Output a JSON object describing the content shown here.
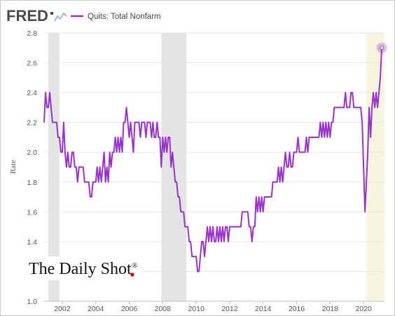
{
  "header": {
    "logo_text": "FRED",
    "series_title": "Quits: Total Nonfarm"
  },
  "watermark": {
    "text": "The Daily Shot",
    "registered_mark": "®",
    "dot_color": "#cc0000"
  },
  "colors": {
    "line": "#9932cc",
    "recession_shade": "#e4e4e4",
    "forecast_shade": "#f7f5dd",
    "grid": "#e6e6e6"
  },
  "chart_data": {
    "type": "line",
    "title": "Quits: Total Nonfarm",
    "ylabel": "Rate",
    "xlabel": "",
    "ylim": [
      1.0,
      2.8
    ],
    "xlim": [
      2000.917,
      2021.25
    ],
    "y_ticks": [
      "1.0",
      "1.2",
      "1.4",
      "1.6",
      "1.8",
      "2.0",
      "2.2",
      "2.4",
      "2.6",
      "2.8"
    ],
    "x_ticks": [
      "2002",
      "2004",
      "2006",
      "2008",
      "2010",
      "2012",
      "2014",
      "2016",
      "2018",
      "2020"
    ],
    "recessions": [
      [
        2001.17,
        2001.83
      ],
      [
        2007.92,
        2009.42
      ]
    ],
    "highlight_period": [
      2020.17,
      2021.25
    ],
    "grid": true,
    "last_point_marker": true,
    "series": [
      {
        "name": "Quits: Total Nonfarm",
        "x_start": 2000.917,
        "step_months": 1,
        "values": [
          2.2,
          2.4,
          2.3,
          2.3,
          2.4,
          2.3,
          2.2,
          2.2,
          2.2,
          2.2,
          2.1,
          2.1,
          2.0,
          2.0,
          2.2,
          2.0,
          1.9,
          2.0,
          1.9,
          1.9,
          2.0,
          2.0,
          1.9,
          1.9,
          1.8,
          1.9,
          1.9,
          1.9,
          1.9,
          1.8,
          1.8,
          1.8,
          1.8,
          1.7,
          1.7,
          1.8,
          1.8,
          1.8,
          1.9,
          1.8,
          1.9,
          1.8,
          1.9,
          2.0,
          1.8,
          1.9,
          1.8,
          2.0,
          1.9,
          2.0,
          2.0,
          2.1,
          2.0,
          2.1,
          2.0,
          2.1,
          2.0,
          2.2,
          2.2,
          2.3,
          2.2,
          2.1,
          2.2,
          2.1,
          2.0,
          2.2,
          2.2,
          2.2,
          2.2,
          2.1,
          2.2,
          2.2,
          2.2,
          2.1,
          2.2,
          2.2,
          2.2,
          2.1,
          2.2,
          2.1,
          2.1,
          2.2,
          2.1,
          2.1,
          1.9,
          2.1,
          2.0,
          2.1,
          2.0,
          2.1,
          2.1,
          1.9,
          2.0,
          1.9,
          1.8,
          1.8,
          1.7,
          1.7,
          1.6,
          1.6,
          1.6,
          1.5,
          1.5,
          1.5,
          1.4,
          1.4,
          1.3,
          1.3,
          1.3,
          1.3,
          1.2,
          1.2,
          1.3,
          1.4,
          1.4,
          1.3,
          1.4,
          1.5,
          1.4,
          1.5,
          1.4,
          1.5,
          1.4,
          1.4,
          1.5,
          1.4,
          1.5,
          1.4,
          1.5,
          1.4,
          1.5,
          1.5,
          1.4,
          1.5,
          1.5,
          1.5,
          1.5,
          1.5,
          1.5,
          1.5,
          1.5,
          1.5,
          1.6,
          1.6,
          1.6,
          1.6,
          1.6,
          1.5,
          1.5,
          1.4,
          1.5,
          1.5,
          1.7,
          1.6,
          1.7,
          1.6,
          1.7,
          1.6,
          1.7,
          1.7,
          1.7,
          1.7,
          1.7,
          1.7,
          1.8,
          1.8,
          1.8,
          1.8,
          1.9,
          1.8,
          1.9,
          1.8,
          1.9,
          2.0,
          1.9,
          1.9,
          2.0,
          1.9,
          1.9,
          2.0,
          2.0,
          2.0,
          2.1,
          2.0,
          2.0,
          2.0,
          2.0,
          2.0,
          2.1,
          2.0,
          2.1,
          2.1,
          2.1,
          2.1,
          2.1,
          2.1,
          2.1,
          2.1,
          2.2,
          2.1,
          2.2,
          2.1,
          2.2,
          2.1,
          2.2,
          2.1,
          2.2,
          2.2,
          2.3,
          2.3,
          2.3,
          2.3,
          2.3,
          2.3,
          2.3,
          2.3,
          2.4,
          2.3,
          2.3,
          2.3,
          2.4,
          2.4,
          2.3,
          2.3,
          2.3,
          2.3,
          2.3,
          2.3,
          2.2,
          1.9,
          1.6,
          1.8,
          2.0,
          2.3,
          2.1,
          2.3,
          2.4,
          2.3,
          2.4,
          2.3,
          2.4,
          2.5,
          2.7
        ]
      }
    ]
  }
}
